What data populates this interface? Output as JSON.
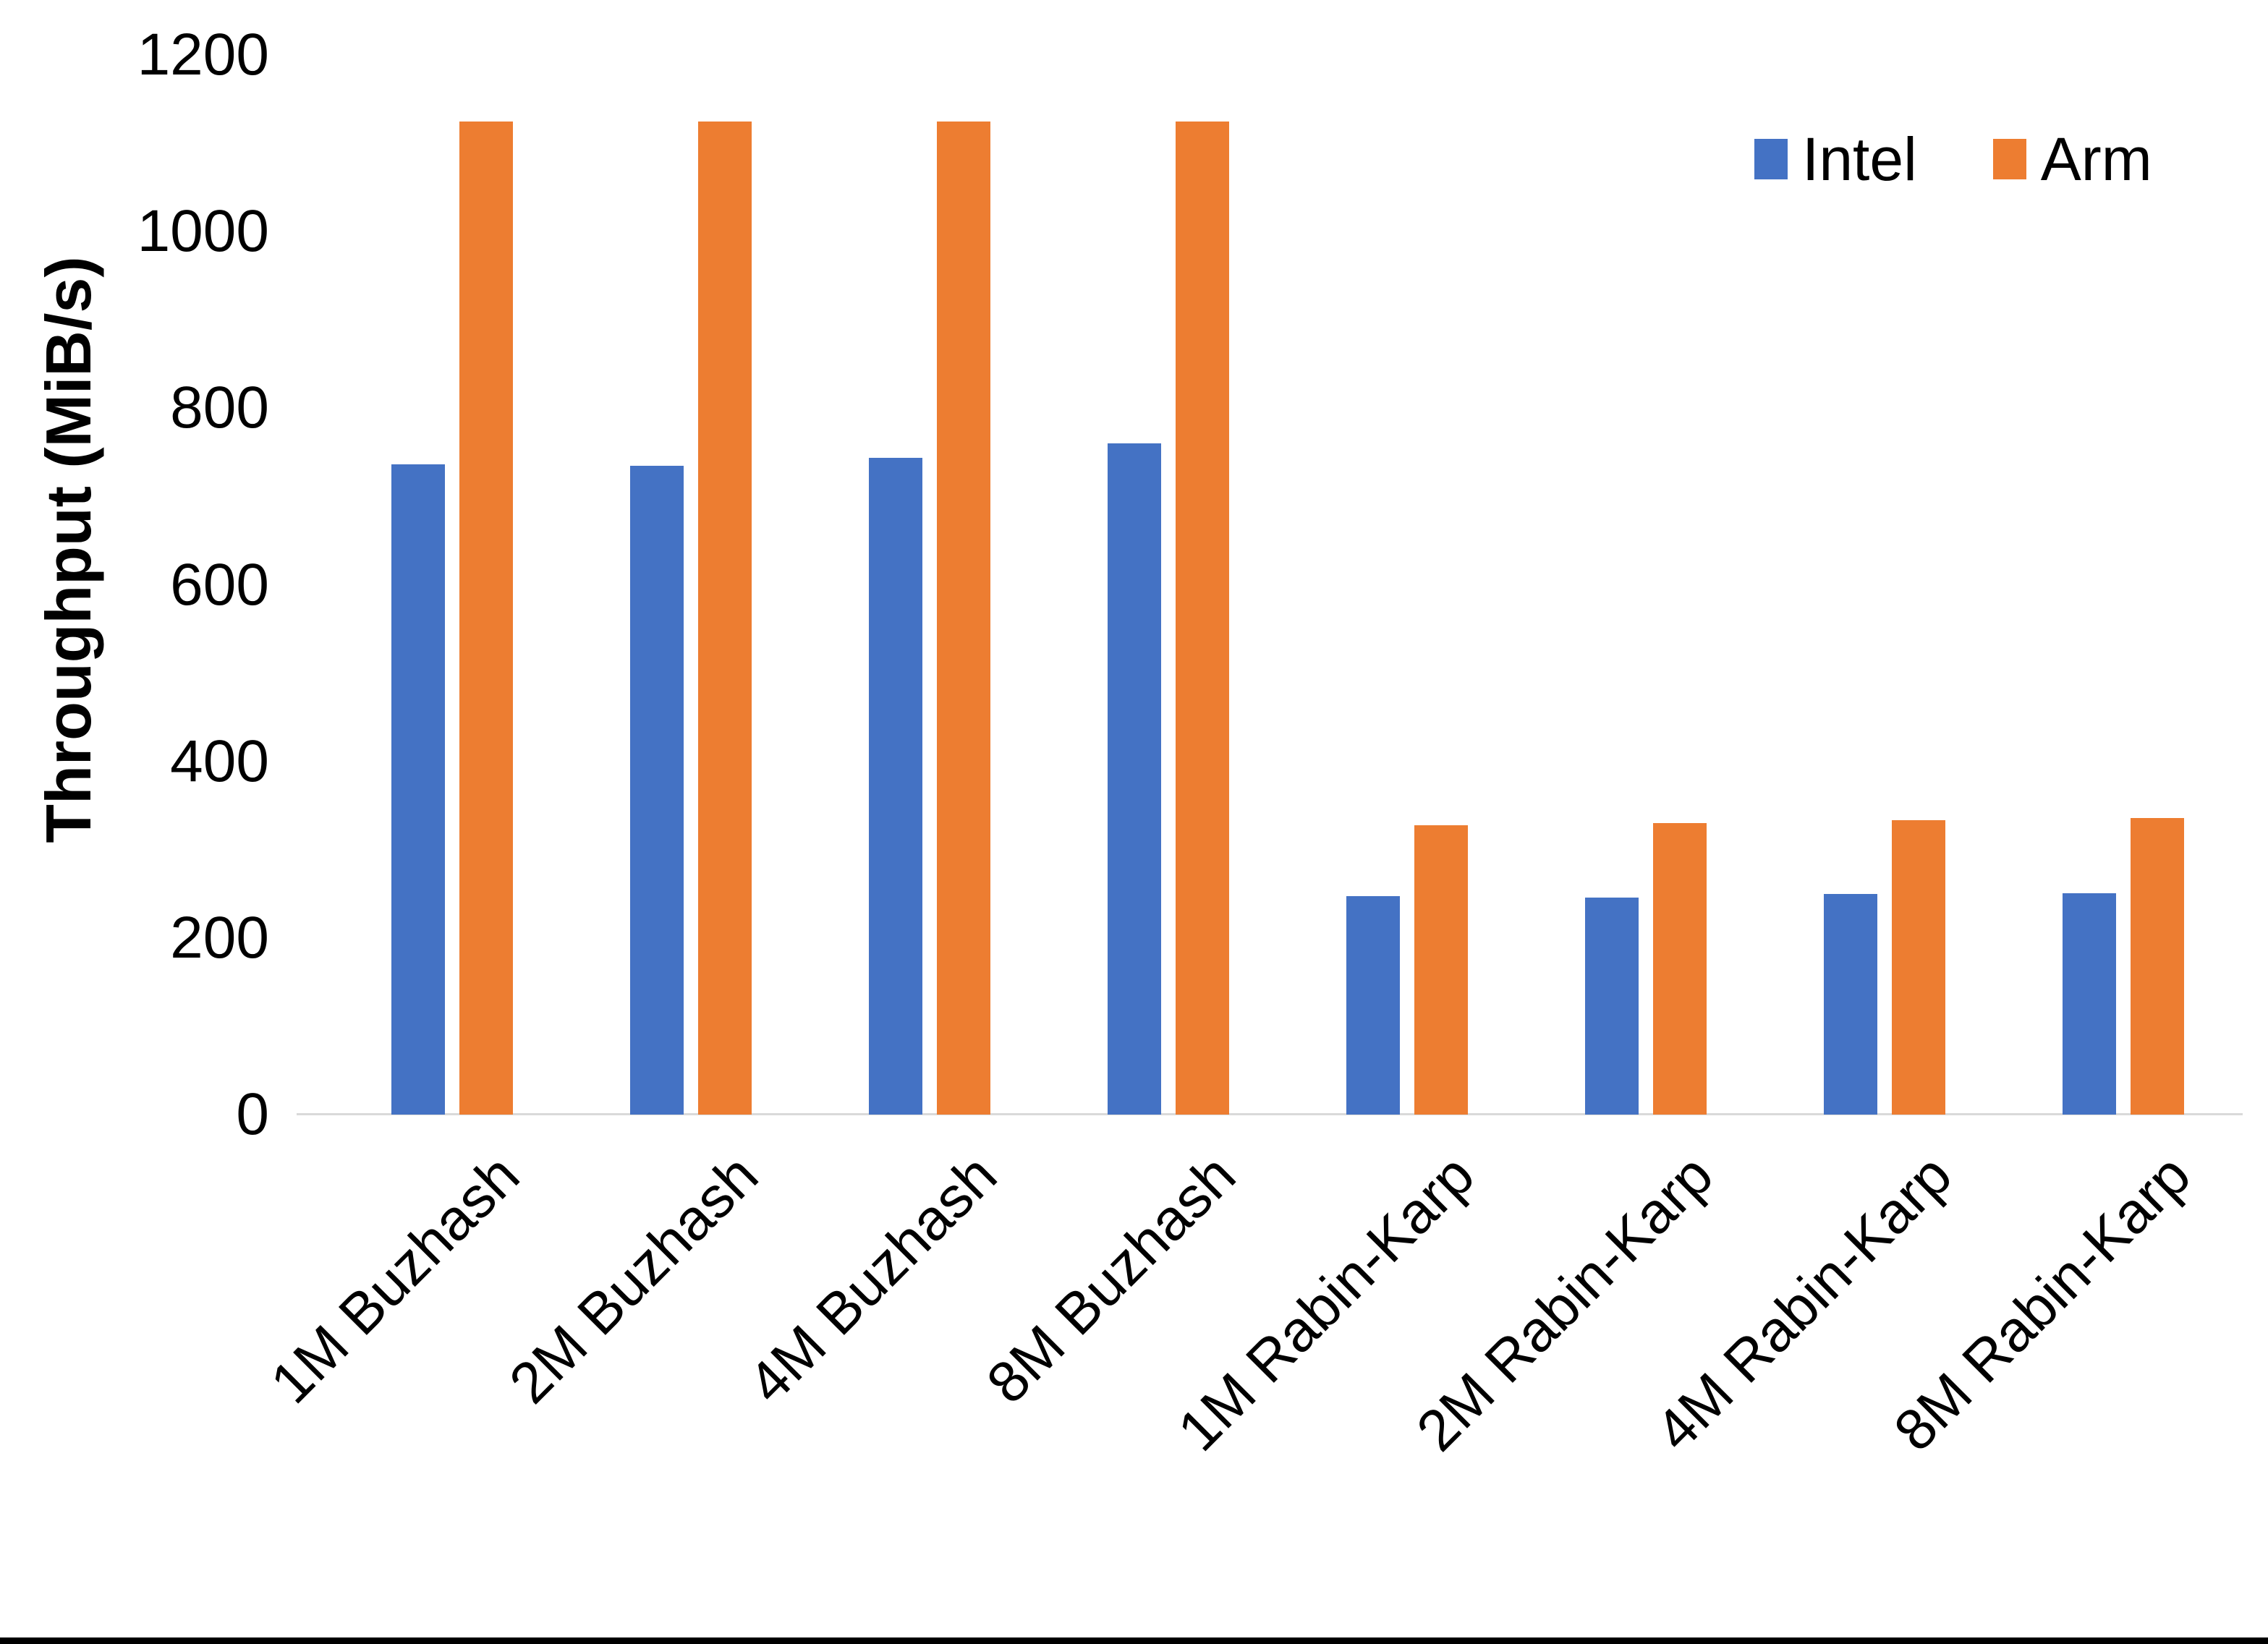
{
  "chart_data": {
    "type": "bar",
    "title": "",
    "xlabel": "",
    "ylabel": "Throughput (MiB/s)",
    "ylim": [
      0,
      1200
    ],
    "yticks": [
      0,
      200,
      400,
      600,
      800,
      1000,
      1200
    ],
    "grid": false,
    "legend_position": "top-right",
    "categories": [
      "1M Buzhash",
      "2M Buzhash",
      "4M Buzhash",
      "8M Buzhash",
      "1M Rabin-Karp",
      "2M Rabin-Karp",
      "4M Rabin-Karp",
      "8M Rabin-Karp"
    ],
    "series": [
      {
        "name": "Intel",
        "color": "#4472C4",
        "values": [
          736,
          735,
          744,
          760,
          247,
          246,
          250,
          251
        ]
      },
      {
        "name": "Arm",
        "color": "#ED7D31",
        "values": [
          1125,
          1125,
          1125,
          1125,
          328,
          330,
          333,
          336
        ]
      }
    ]
  },
  "colors": {
    "background": "#FFFFFF",
    "axis_line": "#D9D9D9",
    "text": "#000000",
    "bottom_border": "#000000"
  }
}
